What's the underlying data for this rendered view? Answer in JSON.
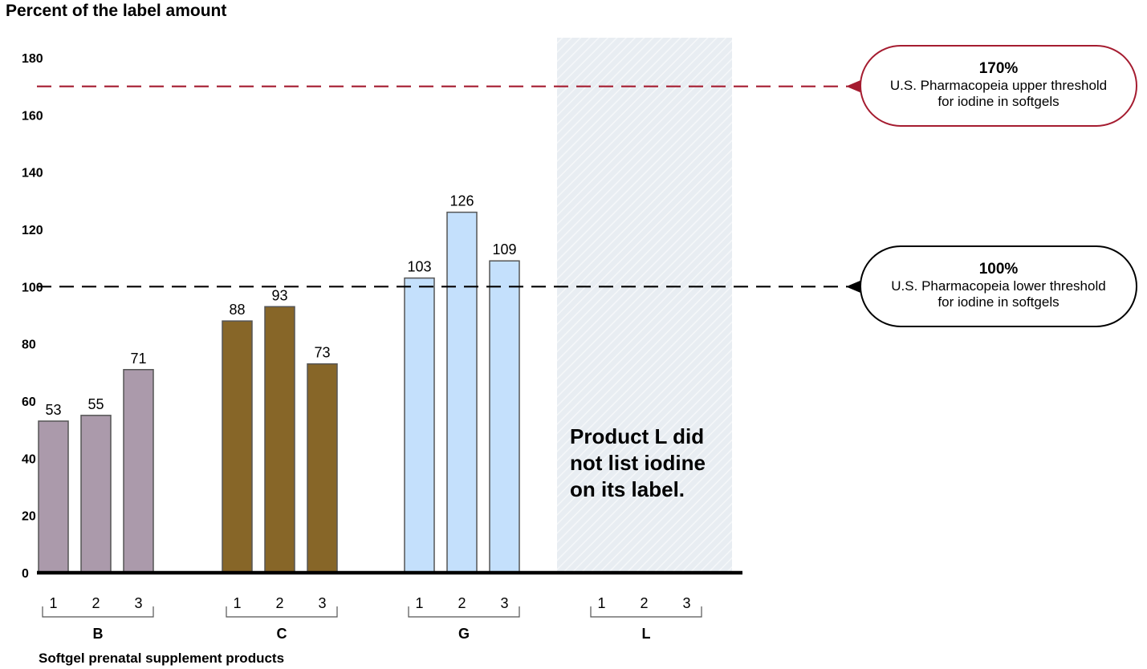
{
  "chart_data": {
    "type": "bar",
    "ylabel": "Percent of the label amount",
    "xlabel": "Softgel prenatal supplement products",
    "ylim": [
      0,
      180
    ],
    "yticks": [
      0,
      20,
      40,
      60,
      80,
      100,
      120,
      140,
      160,
      180
    ],
    "groups": [
      {
        "name": "B",
        "categories": [
          "1",
          "2",
          "3"
        ],
        "values": [
          53,
          55,
          71
        ],
        "color": "#ab9aab"
      },
      {
        "name": "C",
        "categories": [
          "1",
          "2",
          "3"
        ],
        "values": [
          88,
          93,
          73
        ],
        "color": "#876628"
      },
      {
        "name": "G",
        "categories": [
          "1",
          "2",
          "3"
        ],
        "values": [
          103,
          126,
          109
        ],
        "color": "#c4e0fc"
      },
      {
        "name": "L",
        "categories": [
          "1",
          "2",
          "3"
        ],
        "values": [
          null,
          null,
          null
        ],
        "color": "#e8edf2"
      }
    ],
    "reference_lines": [
      {
        "value": 170,
        "label_pct": "170%",
        "label_line1": "U.S. Pharmacopeia upper threshold",
        "label_line2": "for iodine in softgels",
        "color": "#a51c30"
      },
      {
        "value": 100,
        "label_pct": "100%",
        "label_line1": "U.S. Pharmacopeia lower threshold",
        "label_line2": "for iodine in softgels",
        "color": "#000000"
      }
    ],
    "annotation": "Product L did not list iodine on its label."
  }
}
